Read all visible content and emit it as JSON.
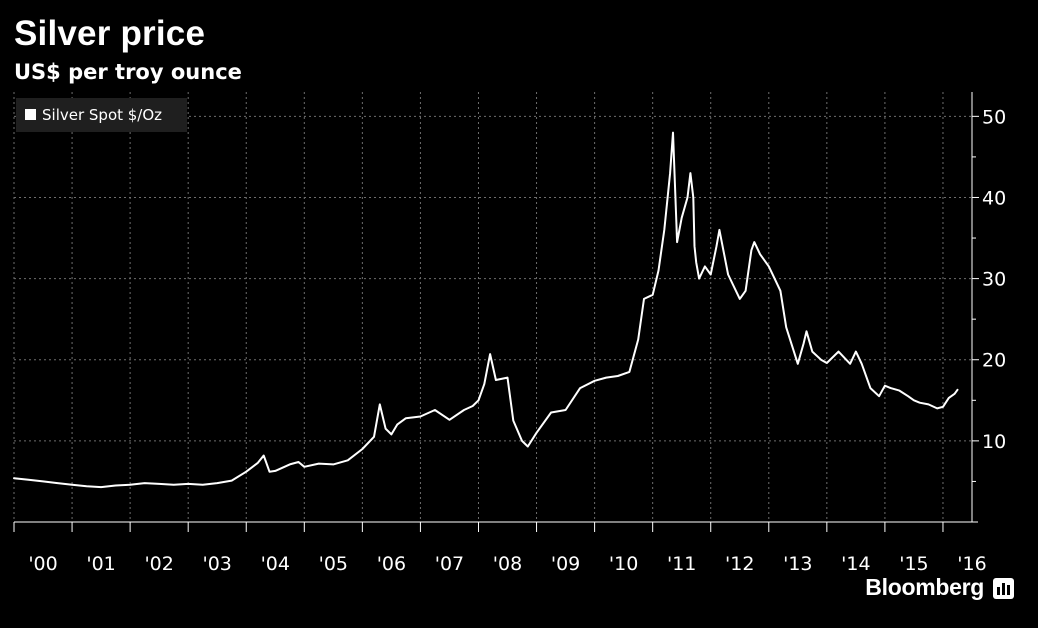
{
  "header": {
    "title": "Silver price",
    "subtitle": "US$ per troy ounce"
  },
  "footer": {
    "brand": "Bloomberg"
  },
  "colors": {
    "background": "#000000",
    "line": "#ffffff",
    "grid": "#6e6e6e"
  },
  "chart_data": {
    "type": "line",
    "legend": {
      "position": "top-left",
      "entries": [
        "Silver Spot $/Oz"
      ]
    },
    "grid": true,
    "xlim": [
      2000.0,
      2016.5
    ],
    "ylim": [
      0,
      53
    ],
    "yticks": [
      10,
      20,
      30,
      40,
      50
    ],
    "y_axis_side": "right",
    "xticks": [
      {
        "value": 2000,
        "label": "'00"
      },
      {
        "value": 2001,
        "label": "'01"
      },
      {
        "value": 2002,
        "label": "'02"
      },
      {
        "value": 2003,
        "label": "'03"
      },
      {
        "value": 2004,
        "label": "'04"
      },
      {
        "value": 2005,
        "label": "'05"
      },
      {
        "value": 2006,
        "label": "'06"
      },
      {
        "value": 2007,
        "label": "'07"
      },
      {
        "value": 2008,
        "label": "'08"
      },
      {
        "value": 2009,
        "label": "'09"
      },
      {
        "value": 2010,
        "label": "'10"
      },
      {
        "value": 2011,
        "label": "'11"
      },
      {
        "value": 2012,
        "label": "'12"
      },
      {
        "value": 2013,
        "label": "'13"
      },
      {
        "value": 2014,
        "label": "'14"
      },
      {
        "value": 2015,
        "label": "'15"
      },
      {
        "value": 2016,
        "label": "'16"
      }
    ],
    "series": [
      {
        "name": "Silver Spot $/Oz",
        "x": [
          2000.0,
          2000.25,
          2000.5,
          2000.75,
          2001.0,
          2001.25,
          2001.5,
          2001.75,
          2002.0,
          2002.25,
          2002.5,
          2002.75,
          2003.0,
          2003.25,
          2003.5,
          2003.75,
          2004.0,
          2004.2,
          2004.3,
          2004.4,
          2004.5,
          2004.75,
          2004.9,
          2005.0,
          2005.25,
          2005.5,
          2005.75,
          2006.0,
          2006.2,
          2006.3,
          2006.4,
          2006.5,
          2006.6,
          2006.75,
          2007.0,
          2007.25,
          2007.5,
          2007.75,
          2007.9,
          2008.0,
          2008.1,
          2008.2,
          2008.3,
          2008.5,
          2008.6,
          2008.75,
          2008.85,
          2009.0,
          2009.25,
          2009.5,
          2009.75,
          2010.0,
          2010.2,
          2010.4,
          2010.6,
          2010.75,
          2010.85,
          2011.0,
          2011.1,
          2011.2,
          2011.3,
          2011.35,
          2011.42,
          2011.5,
          2011.6,
          2011.65,
          2011.7,
          2011.72,
          2011.75,
          2011.8,
          2011.9,
          2012.0,
          2012.1,
          2012.15,
          2012.3,
          2012.5,
          2012.6,
          2012.7,
          2012.75,
          2012.85,
          2013.0,
          2013.1,
          2013.2,
          2013.3,
          2013.5,
          2013.6,
          2013.65,
          2013.75,
          2013.9,
          2014.0,
          2014.2,
          2014.4,
          2014.5,
          2014.6,
          2014.75,
          2014.9,
          2015.0,
          2015.1,
          2015.25,
          2015.4,
          2015.5,
          2015.6,
          2015.75,
          2015.9,
          2016.0,
          2016.1,
          2016.2,
          2016.25
        ],
        "y": [
          5.4,
          5.2,
          5.0,
          4.8,
          4.6,
          4.4,
          4.3,
          4.5,
          4.6,
          4.8,
          4.7,
          4.6,
          4.7,
          4.6,
          4.8,
          5.1,
          6.2,
          7.3,
          8.2,
          6.2,
          6.3,
          7.1,
          7.4,
          6.8,
          7.2,
          7.1,
          7.6,
          9.0,
          10.5,
          14.5,
          11.5,
          10.8,
          12.0,
          12.8,
          13.0,
          13.8,
          12.6,
          13.8,
          14.3,
          15.0,
          17.0,
          20.7,
          17.5,
          17.8,
          12.5,
          10.0,
          9.3,
          11.0,
          13.5,
          13.8,
          16.5,
          17.4,
          17.8,
          18.0,
          18.5,
          22.5,
          27.5,
          28.0,
          31.0,
          36.0,
          43.0,
          48.0,
          34.5,
          37.5,
          40.0,
          43.0,
          40.0,
          34.0,
          32.0,
          30.0,
          31.5,
          30.5,
          34.0,
          36.0,
          30.5,
          27.5,
          28.5,
          33.5,
          34.5,
          33.0,
          31.5,
          30.0,
          28.5,
          24.0,
          19.5,
          22.0,
          23.5,
          21.0,
          20.0,
          19.6,
          21.0,
          19.5,
          21.0,
          19.5,
          16.5,
          15.5,
          16.8,
          16.5,
          16.2,
          15.5,
          15.0,
          14.7,
          14.5,
          14.0,
          14.2,
          15.3,
          15.8,
          16.3
        ]
      }
    ]
  }
}
